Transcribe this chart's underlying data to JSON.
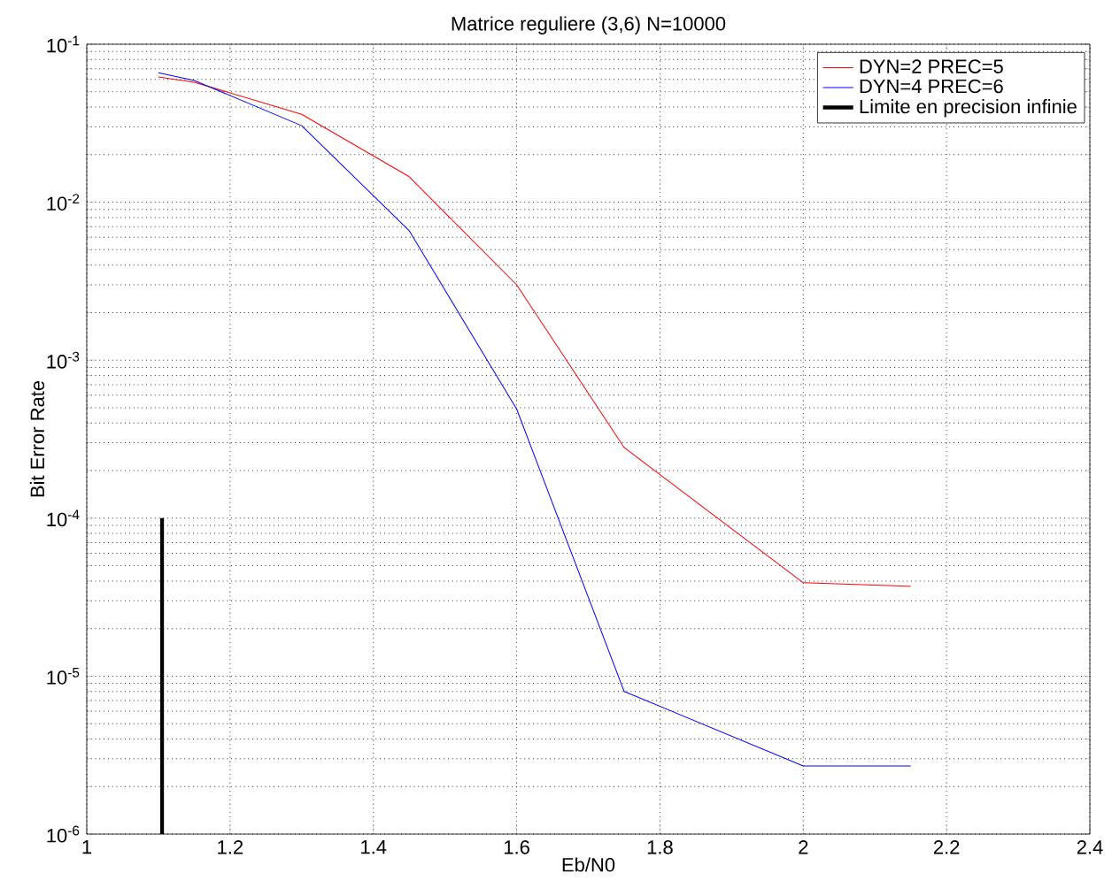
{
  "chart_data": {
    "type": "line",
    "title": "Matrice reguliere (3,6) N=10000",
    "xlabel": "Eb/N0",
    "ylabel": "Bit Error Rate",
    "log": "y",
    "grid": true,
    "legend": "top right",
    "marker": "none",
    "line_style": "solid",
    "xlim": [
      1,
      2.4
    ],
    "xticks": [
      1,
      1.2,
      1.4,
      1.6,
      1.8,
      2,
      2.2,
      2.4
    ],
    "ylim": [
      1e-06,
      0.1
    ],
    "yticks": [
      {
        "value": 1e-06,
        "label": "10$^{-6}$"
      },
      {
        "value": 1e-05,
        "label": "10$^{-5}$"
      },
      {
        "value": 0.0001,
        "label": "10$^{-4}$"
      },
      {
        "value": 0.001,
        "label": "10$^{-3}$"
      },
      {
        "value": 0.01,
        "label": "10$^{-2}$"
      },
      {
        "value": 0.1,
        "label": "10$^{-1}$"
      }
    ],
    "series": [
      {
        "name": "DYN=2 PREC=5",
        "color": "#ff0000",
        "x": [
          1.1,
          1.15,
          1.3,
          1.45,
          1.6,
          1.75,
          2,
          2.15
        ],
        "values": [
          0.062,
          0.0575,
          0.036,
          0.0145,
          0.003,
          0.00028,
          3.9e-05,
          3.7e-05
        ]
      },
      {
        "name": "DYN=4 PREC=6",
        "color": "#0000ff",
        "x": [
          1.1,
          1.15,
          1.3,
          1.45,
          1.6,
          1.75,
          2,
          2.15
        ],
        "values": [
          0.066,
          0.059,
          0.0305,
          0.0066,
          0.00049,
          8e-06,
          2.7e-06,
          2.7e-06
        ]
      },
      {
        "name": "Limite en precision infinie",
        "color": "#000000",
        "x": [
          1.105,
          1.105
        ],
        "values": [
          1e-06,
          0.0001
        ]
      }
    ]
  }
}
